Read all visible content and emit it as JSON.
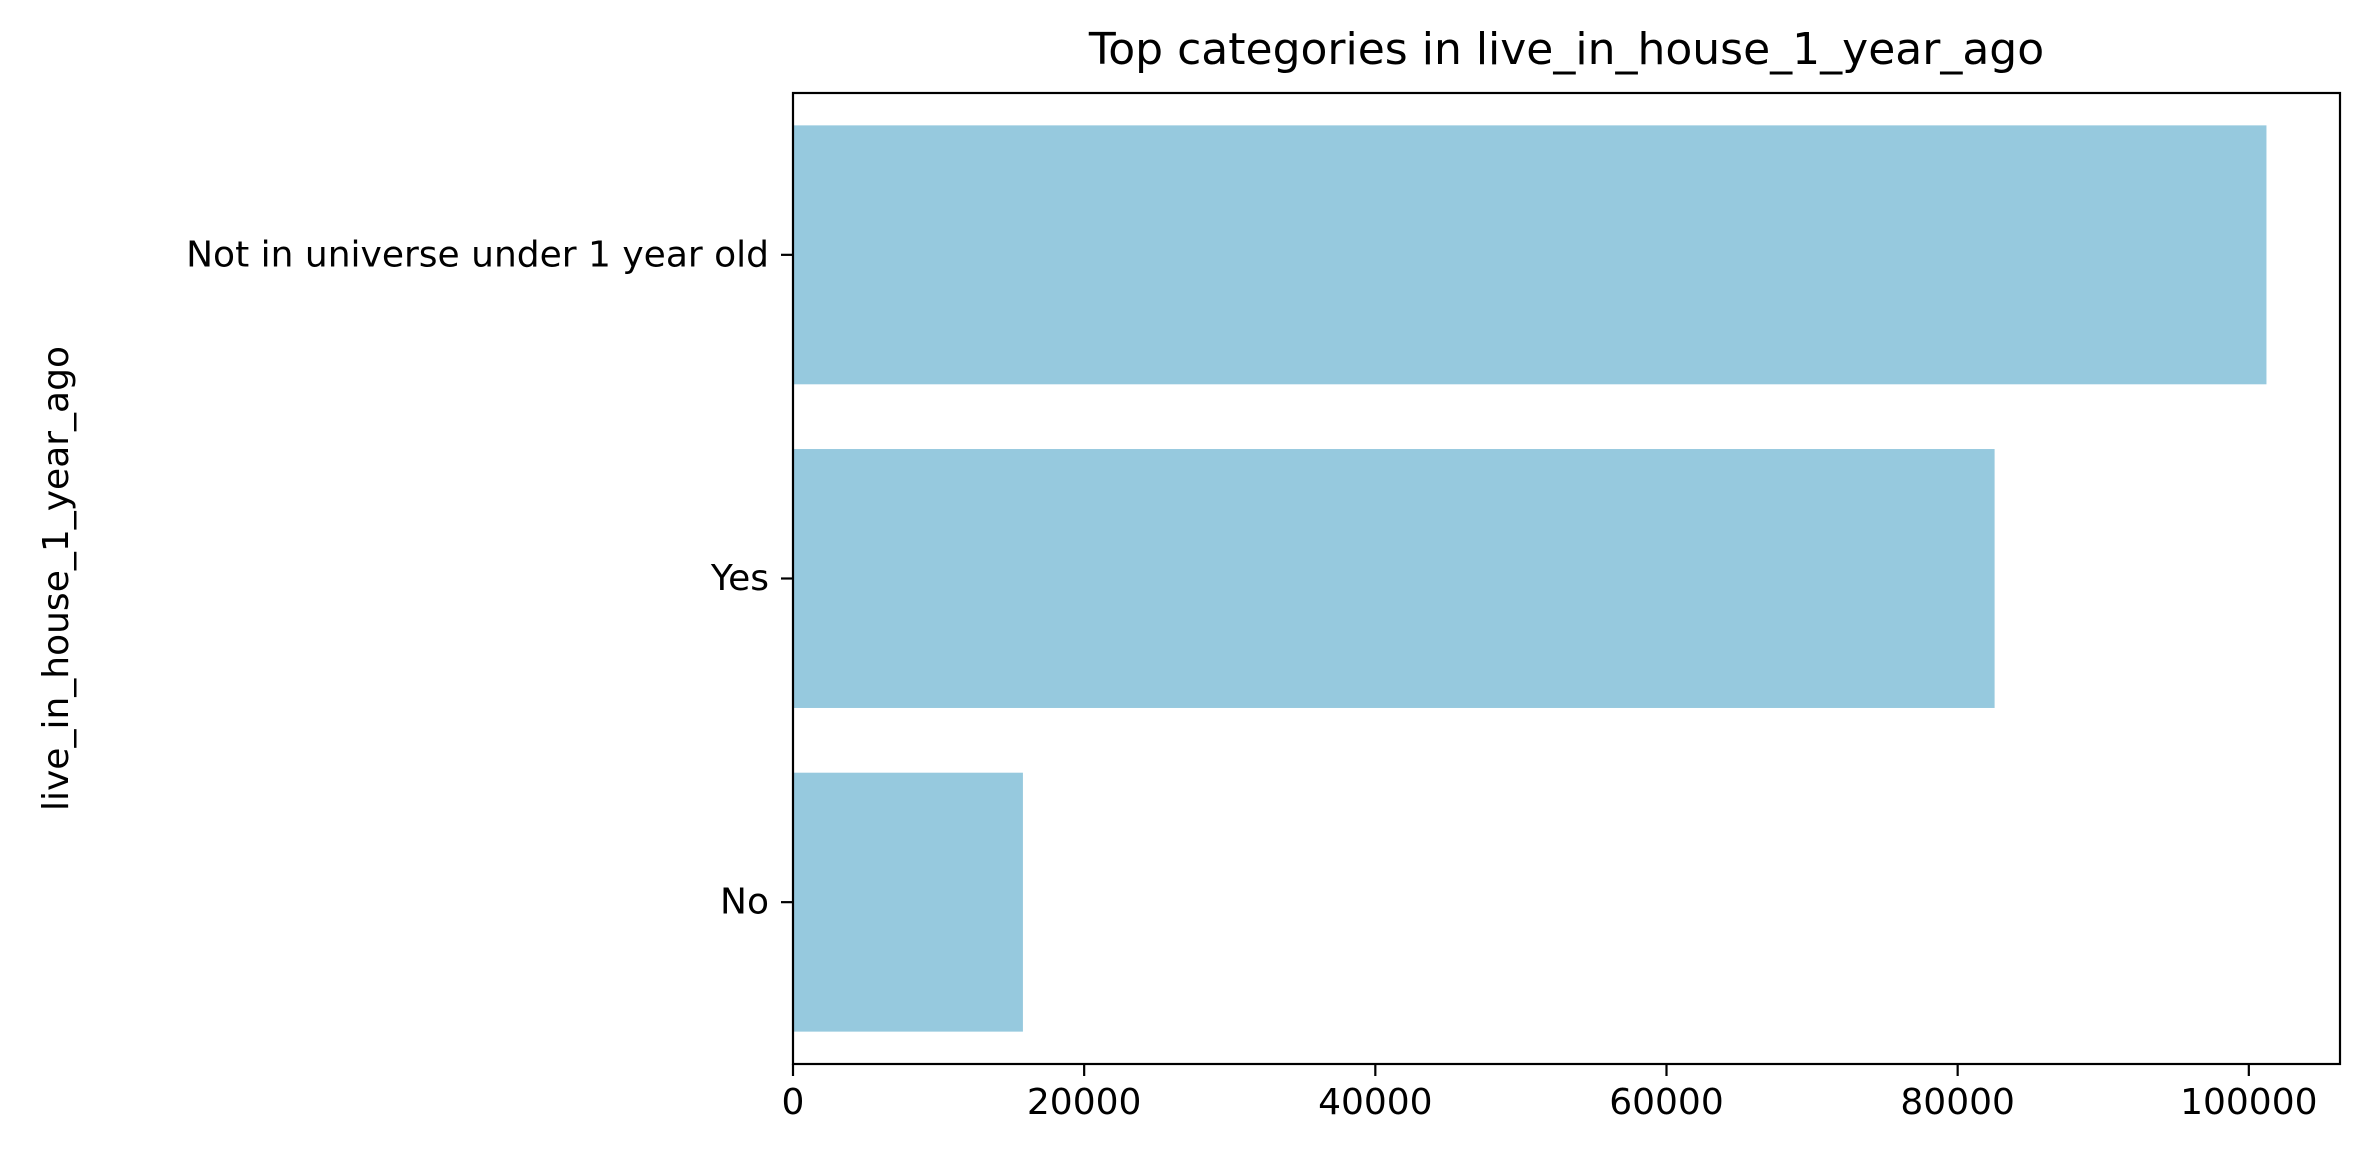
{
  "chart_data": {
    "type": "bar",
    "orientation": "horizontal",
    "title": "Top categories in live_in_house_1_year_ago",
    "xlabel": "",
    "ylabel": "live_in_house_1_year_ago",
    "categories": [
      "Not in universe under 1 year old",
      "Yes",
      "No"
    ],
    "values": [
      101212,
      82538,
      15793
    ],
    "xlim": [
      0,
      106263
    ],
    "xticks": [
      0,
      20000,
      40000,
      60000,
      80000,
      100000
    ],
    "xtick_labels": [
      "0",
      "20000",
      "40000",
      "60000",
      "80000",
      "100000"
    ],
    "bar_color": "#96c9de",
    "grid": false,
    "legend": "none"
  }
}
